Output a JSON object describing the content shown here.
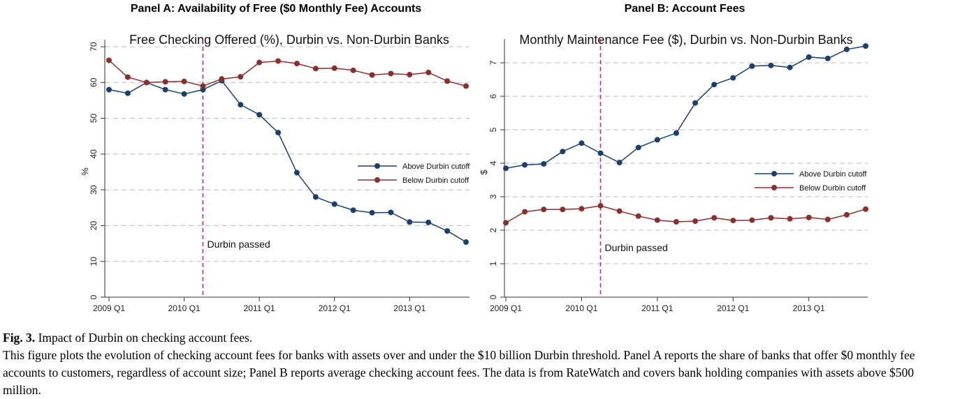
{
  "panelA_title": "Panel A: Availability of Free ($0 Monthly Fee) Accounts",
  "panelB_title": "Panel B: Account Fees",
  "caption": {
    "fig_label": "Fig. 3.",
    "fig_title": "Impact of Durbin on checking account fees.",
    "text": "This figure plots the evolution of checking account fees for banks with assets over and under the $10 billion Durbin threshold. Panel A reports the share of banks that offer $0 monthly fee accounts to customers, regardless of account size; Panel B reports average checking account fees. The data is from RateWatch and covers bank holding companies with assets above $500 million."
  },
  "colors": {
    "above": "#1a3f6e",
    "below": "#8b2e2e",
    "durbin_line": "#d6204a",
    "grid": "#bbbbbb"
  },
  "chart_data": [
    {
      "type": "line",
      "title": "Free Checking Offered (%), Durbin vs. Non-Durbin Banks",
      "ylabel": "%",
      "xlabel": "",
      "ylim": [
        0,
        70
      ],
      "yticks": [
        "0",
        "10",
        "20",
        "30",
        "40",
        "50",
        "60",
        "70"
      ],
      "xticks": [
        "2009 Q1",
        "2010 Q1",
        "2011 Q1",
        "2012 Q1",
        "2013 Q1"
      ],
      "x": [
        "2009 Q1",
        "2009 Q2",
        "2009 Q3",
        "2009 Q4",
        "2010 Q1",
        "2010 Q2",
        "2010 Q3",
        "2010 Q4",
        "2011 Q1",
        "2011 Q2",
        "2011 Q3",
        "2011 Q4",
        "2012 Q1",
        "2012 Q2",
        "2012 Q3",
        "2012 Q4",
        "2013 Q1",
        "2013 Q2",
        "2013 Q3",
        "2013 Q4"
      ],
      "series": [
        {
          "name": "Above Durbin cutoff",
          "values": [
            58.0,
            57.0,
            60.0,
            58.0,
            56.8,
            58.0,
            60.5,
            53.8,
            51.0,
            46.0,
            34.8,
            28.0,
            26.0,
            24.3,
            23.6,
            23.7,
            21.0,
            20.9,
            18.5,
            15.4
          ]
        },
        {
          "name": "Below Durbin cutoff",
          "values": [
            66.2,
            61.5,
            60.0,
            60.2,
            60.3,
            59.0,
            61.0,
            61.6,
            65.6,
            66.0,
            65.3,
            63.9,
            64.0,
            63.4,
            62.1,
            62.5,
            62.2,
            62.8,
            60.4,
            59.0
          ]
        }
      ],
      "durbin_quarter": "2010 Q2",
      "annotation": "Durbin passed",
      "grid": true,
      "legend_position": "center-right"
    },
    {
      "type": "line",
      "title": "Monthly Maintenance Fee ($), Durbin vs. Non-Durbin Banks",
      "ylabel": "$",
      "xlabel": "",
      "ylim": [
        0,
        7.5
      ],
      "yticks": [
        "0",
        "1",
        "2",
        "3",
        "4",
        "5",
        "6",
        "7"
      ],
      "xticks": [
        "2009 Q1",
        "2010 Q1",
        "2011 Q1",
        "2012 Q1",
        "2013 Q1"
      ],
      "x": [
        "2009 Q1",
        "2009 Q2",
        "2009 Q3",
        "2009 Q4",
        "2010 Q1",
        "2010 Q2",
        "2010 Q3",
        "2010 Q4",
        "2011 Q1",
        "2011 Q2",
        "2011 Q3",
        "2011 Q4",
        "2012 Q1",
        "2012 Q2",
        "2012 Q3",
        "2012 Q4",
        "2013 Q1",
        "2013 Q2",
        "2013 Q3",
        "2013 Q4"
      ],
      "series": [
        {
          "name": "Above Durbin cutoff",
          "values": [
            3.85,
            3.95,
            3.98,
            4.35,
            4.6,
            4.3,
            4.02,
            4.47,
            4.7,
            4.9,
            5.8,
            6.35,
            6.55,
            6.9,
            6.92,
            6.86,
            7.17,
            7.13,
            7.4,
            7.5
          ]
        },
        {
          "name": "Below Durbin cutoff",
          "values": [
            2.22,
            2.55,
            2.62,
            2.62,
            2.64,
            2.73,
            2.57,
            2.42,
            2.3,
            2.25,
            2.27,
            2.37,
            2.29,
            2.3,
            2.37,
            2.34,
            2.38,
            2.32,
            2.46,
            2.63
          ]
        }
      ],
      "durbin_quarter": "2010 Q2",
      "annotation": "Durbin passed",
      "grid": true,
      "legend_position": "center-right"
    }
  ]
}
